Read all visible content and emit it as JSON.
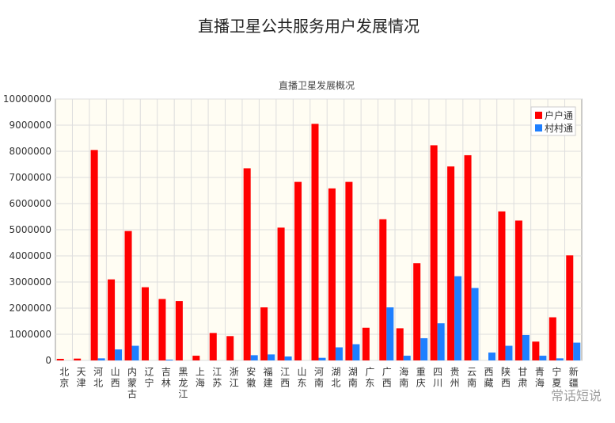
{
  "chart_data": {
    "type": "bar",
    "page_title": "直播卫星公共服务用户发展情况",
    "title": "直播卫星发展概况",
    "categories": [
      "北京",
      "天津",
      "河北",
      "山西",
      "内蒙古",
      "辽宁",
      "吉林",
      "黑龙江",
      "上海",
      "江苏",
      "浙江",
      "安徽",
      "福建",
      "江西",
      "山东",
      "河南",
      "湖北",
      "湖南",
      "广东",
      "广西",
      "海南",
      "重庆",
      "四川",
      "贵州",
      "云南",
      "西藏",
      "陕西",
      "甘肃",
      "青海",
      "宁夏",
      "新疆"
    ],
    "series": [
      {
        "name": "户户通",
        "color": "#ff0000",
        "values": [
          60000,
          70000,
          8050000,
          3100000,
          4950000,
          2800000,
          2350000,
          2270000,
          180000,
          1050000,
          930000,
          7350000,
          2030000,
          5080000,
          6830000,
          9050000,
          6580000,
          6830000,
          1250000,
          5400000,
          1230000,
          3720000,
          8230000,
          7420000,
          7850000,
          0,
          5700000,
          5350000,
          720000,
          1650000,
          4020000
        ]
      },
      {
        "name": "村村通",
        "color": "#1e7fff",
        "values": [
          0,
          0,
          80000,
          420000,
          560000,
          0,
          30000,
          0,
          0,
          0,
          0,
          200000,
          230000,
          150000,
          0,
          100000,
          500000,
          620000,
          0,
          2030000,
          180000,
          850000,
          1420000,
          3220000,
          2770000,
          300000,
          560000,
          970000,
          180000,
          80000,
          680000
        ]
      }
    ],
    "ylim": [
      0,
      10000000
    ],
    "yticks": [
      0,
      1000000,
      2000000,
      3000000,
      4000000,
      5000000,
      6000000,
      7000000,
      8000000,
      9000000,
      10000000
    ],
    "grid": true,
    "legend": "top-right",
    "watermark": "常话短说"
  }
}
